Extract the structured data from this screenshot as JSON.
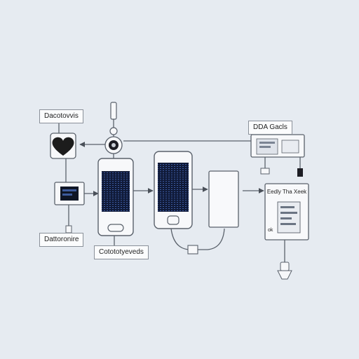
{
  "labels": {
    "top_left": "Dacotovvis",
    "top_right": "DDA Gacls",
    "bottom_left": "Dattoronire",
    "bottom_center": "Cotototyeveds",
    "right_panel": "Eedly Tha Xeek",
    "right_panel_small": "ok"
  },
  "colors": {
    "background": "#e6ebf1",
    "line": "#5a616b",
    "screen": "#101a38",
    "heart": "#1c1c1c"
  }
}
